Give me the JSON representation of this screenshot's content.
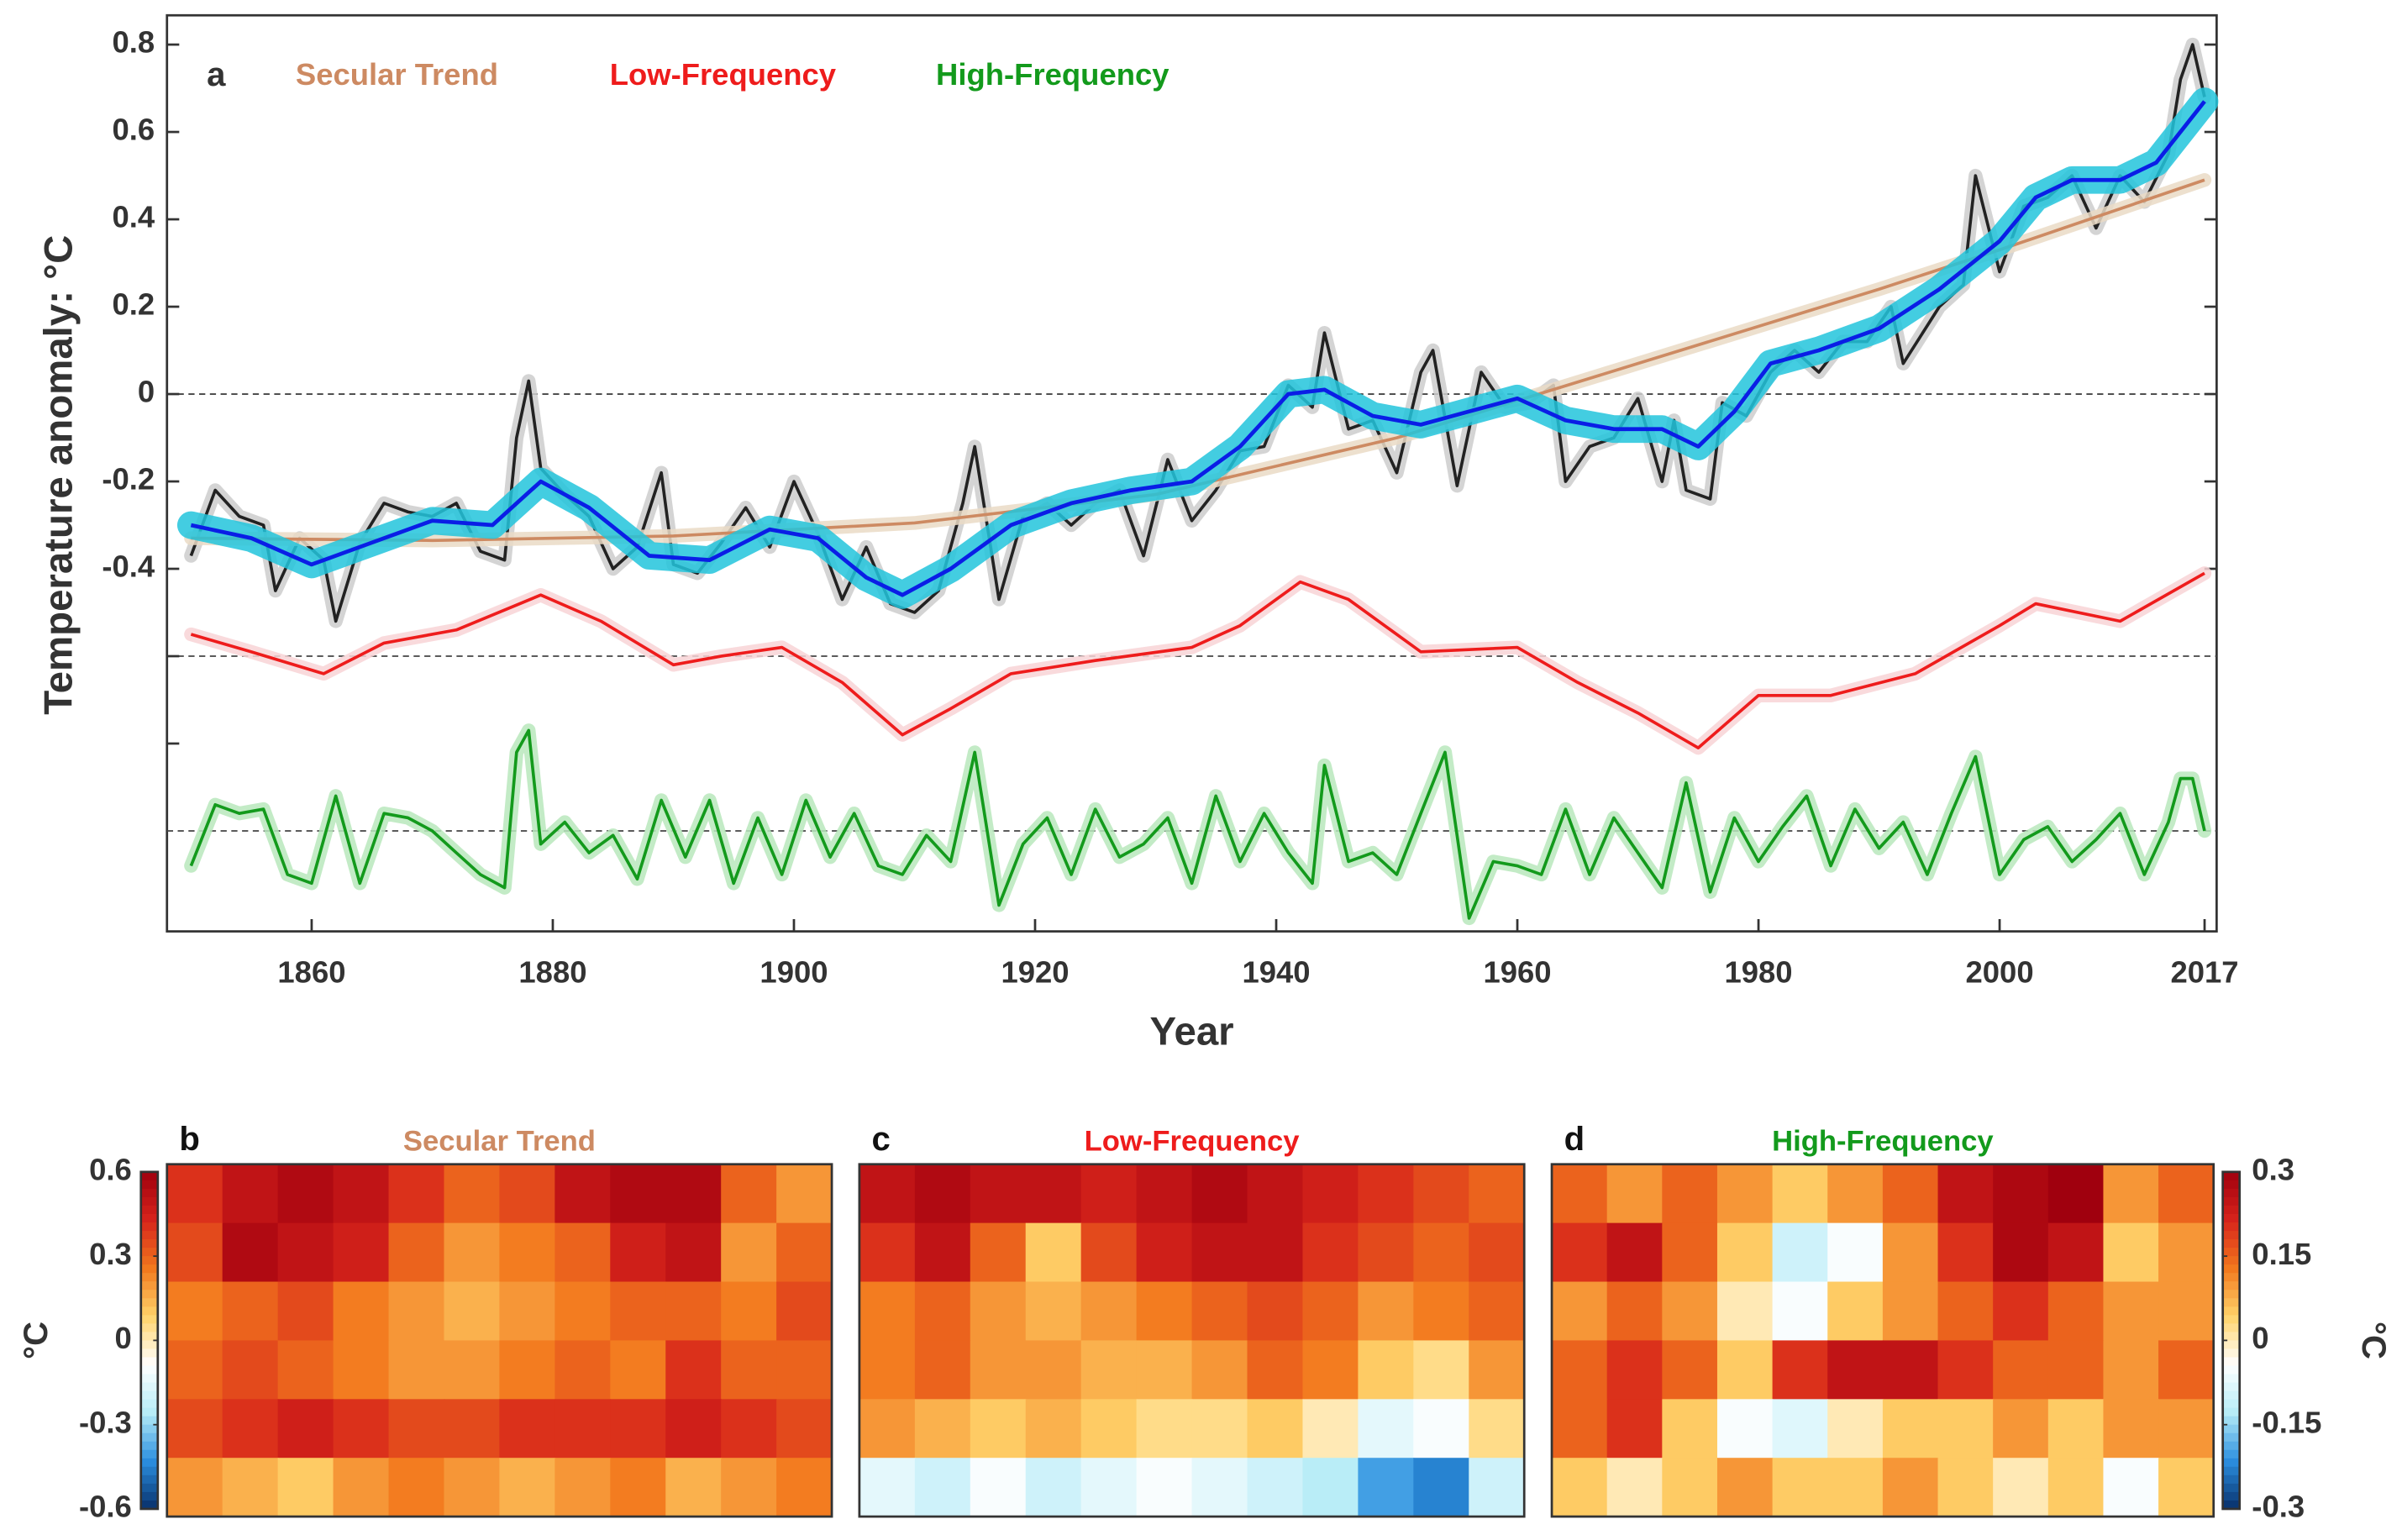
{
  "chart_data": [
    {
      "type": "line",
      "panel": "a",
      "ylabel": "Temperature anomaly: °C",
      "xlabel": "Year",
      "xlim": [
        1848,
        2018
      ],
      "xticks": [
        1860,
        1880,
        1900,
        1920,
        1940,
        1960,
        1980,
        2000,
        2017
      ],
      "ylim": [
        -1.23,
        0.867
      ],
      "yticks": [
        0.8,
        0.6,
        0.4,
        0.2,
        0,
        -0.2,
        -0.4
      ],
      "minor_yticks": [
        -0.6,
        -0.8
      ],
      "hlines": [
        0,
        -0.6,
        -1.0
      ],
      "hline_style": "dashed",
      "series": [
        {
          "name": "Secular Trend",
          "color": "#cd8a62",
          "band": "#eadbc6",
          "x": [
            1850,
            1870,
            1890,
            1910,
            1930,
            1950,
            1970,
            1990,
            2000,
            2017
          ],
          "values": [
            -0.33,
            -0.335,
            -0.325,
            -0.295,
            -0.23,
            -0.1,
            0.07,
            0.24,
            0.33,
            0.49
          ]
        },
        {
          "color": "#222222",
          "band": "#cccccc",
          "x": [
            1850,
            1852,
            1854,
            1856,
            1857,
            1859,
            1861,
            1862,
            1864,
            1866,
            1868,
            1870,
            1872,
            1874,
            1876,
            1877,
            1878,
            1879,
            1881,
            1883,
            1885,
            1887,
            1889,
            1890,
            1892,
            1894,
            1896,
            1898,
            1900,
            1902,
            1904,
            1906,
            1908,
            1910,
            1912,
            1914,
            1915,
            1917,
            1919,
            1921,
            1923,
            1925,
            1927,
            1929,
            1931,
            1933,
            1935,
            1937,
            1939,
            1941,
            1943,
            1944,
            1946,
            1948,
            1950,
            1952,
            1953,
            1955,
            1957,
            1959,
            1961,
            1963,
            1964,
            1966,
            1968,
            1970,
            1972,
            1973,
            1974,
            1976,
            1977,
            1979,
            1981,
            1983,
            1985,
            1987,
            1989,
            1991,
            1992,
            1995,
            1997,
            1998,
            2000,
            2002,
            2004,
            2006,
            2008,
            2010,
            2012,
            2014,
            2015,
            2016,
            2017
          ],
          "values": [
            -0.37,
            -0.22,
            -0.28,
            -0.3,
            -0.45,
            -0.33,
            -0.38,
            -0.52,
            -0.34,
            -0.25,
            -0.27,
            -0.28,
            -0.25,
            -0.36,
            -0.38,
            -0.1,
            0.03,
            -0.17,
            -0.23,
            -0.28,
            -0.4,
            -0.35,
            -0.18,
            -0.39,
            -0.41,
            -0.34,
            -0.26,
            -0.35,
            -0.2,
            -0.32,
            -0.47,
            -0.35,
            -0.48,
            -0.5,
            -0.45,
            -0.25,
            -0.12,
            -0.47,
            -0.28,
            -0.25,
            -0.3,
            -0.25,
            -0.22,
            -0.37,
            -0.15,
            -0.29,
            -0.22,
            -0.13,
            -0.12,
            0.02,
            -0.03,
            0.14,
            -0.08,
            -0.06,
            -0.18,
            0.05,
            0.1,
            -0.21,
            0.05,
            -0.03,
            -0.02,
            0.02,
            -0.2,
            -0.12,
            -0.1,
            -0.01,
            -0.2,
            -0.06,
            -0.22,
            -0.24,
            -0.02,
            -0.05,
            0.05,
            0.1,
            0.05,
            0.12,
            0.12,
            0.2,
            0.07,
            0.2,
            0.25,
            0.5,
            0.28,
            0.43,
            0.45,
            0.5,
            0.38,
            0.5,
            0.44,
            0.55,
            0.72,
            0.8,
            0.68
          ]
        },
        {
          "color": "#0a1ee6",
          "band": "#22c4dc",
          "x": [
            1850,
            1855,
            1860,
            1865,
            1870,
            1875,
            1879,
            1883,
            1888,
            1893,
            1898,
            1902,
            1906,
            1909,
            1913,
            1918,
            1923,
            1928,
            1933,
            1937,
            1941,
            1944,
            1948,
            1952,
            1956,
            1960,
            1964,
            1968,
            1972,
            1975,
            1978,
            1981,
            1985,
            1990,
            1995,
            2000,
            2003,
            2006,
            2010,
            2013,
            2017
          ],
          "values": [
            -0.3,
            -0.33,
            -0.39,
            -0.34,
            -0.29,
            -0.3,
            -0.2,
            -0.26,
            -0.37,
            -0.38,
            -0.31,
            -0.33,
            -0.42,
            -0.46,
            -0.4,
            -0.3,
            -0.25,
            -0.22,
            -0.2,
            -0.12,
            0.0,
            0.01,
            -0.05,
            -0.07,
            -0.04,
            -0.01,
            -0.06,
            -0.08,
            -0.08,
            -0.12,
            -0.04,
            0.07,
            0.1,
            0.15,
            0.24,
            0.35,
            0.45,
            0.49,
            0.49,
            0.53,
            0.67
          ]
        },
        {
          "name": "Low-Frequency",
          "color": "#ee1c1c",
          "band": "#f8d4d6",
          "x": [
            1850,
            1855,
            1861,
            1866,
            1872,
            1879,
            1884,
            1890,
            1894,
            1899,
            1904,
            1909,
            1913,
            1918,
            1925,
            1933,
            1937,
            1942,
            1946,
            1952,
            1960,
            1965,
            1970,
            1975,
            1980,
            1986,
            1993,
            2000,
            2003,
            2010,
            2017
          ],
          "values": [
            -0.55,
            -0.59,
            -0.64,
            -0.57,
            -0.54,
            -0.46,
            -0.52,
            -0.62,
            -0.6,
            -0.58,
            -0.66,
            -0.78,
            -0.72,
            -0.64,
            -0.61,
            -0.58,
            -0.53,
            -0.43,
            -0.47,
            -0.59,
            -0.58,
            -0.66,
            -0.73,
            -0.81,
            -0.69,
            -0.69,
            -0.64,
            -0.53,
            -0.48,
            -0.52,
            -0.41
          ]
        },
        {
          "name": "High-Frequency",
          "color": "#139a1c",
          "band": "#b9e8bc",
          "x": [
            1850,
            1852,
            1854,
            1856,
            1858,
            1860,
            1862,
            1864,
            1866,
            1868,
            1870,
            1872,
            1874,
            1876,
            1877,
            1878,
            1879,
            1881,
            1883,
            1885,
            1887,
            1889,
            1891,
            1893,
            1895,
            1897,
            1899,
            1901,
            1903,
            1905,
            1907,
            1909,
            1911,
            1913,
            1915,
            1917,
            1919,
            1921,
            1923,
            1925,
            1927,
            1929,
            1931,
            1933,
            1935,
            1937,
            1939,
            1941,
            1943,
            1944,
            1946,
            1948,
            1950,
            1952,
            1954,
            1956,
            1958,
            1960,
            1962,
            1964,
            1966,
            1968,
            1970,
            1972,
            1974,
            1976,
            1978,
            1980,
            1982,
            1984,
            1986,
            1988,
            1990,
            1992,
            1994,
            1996,
            1998,
            2000,
            2002,
            2004,
            2006,
            2008,
            2010,
            2012,
            2014,
            2015,
            2016,
            2017
          ],
          "values": [
            -1.08,
            -0.94,
            -0.96,
            -0.95,
            -1.1,
            -1.12,
            -0.92,
            -1.12,
            -0.96,
            -0.97,
            -1.0,
            -1.05,
            -1.1,
            -1.13,
            -0.82,
            -0.77,
            -1.03,
            -0.98,
            -1.05,
            -1.01,
            -1.11,
            -0.93,
            -1.06,
            -0.93,
            -1.12,
            -0.97,
            -1.1,
            -0.93,
            -1.06,
            -0.96,
            -1.08,
            -1.1,
            -1.01,
            -1.07,
            -0.82,
            -1.17,
            -1.03,
            -0.97,
            -1.1,
            -0.95,
            -1.06,
            -1.03,
            -0.97,
            -1.12,
            -0.92,
            -1.07,
            -0.96,
            -1.05,
            -1.12,
            -0.85,
            -1.07,
            -1.05,
            -1.1,
            -0.96,
            -0.82,
            -1.2,
            -1.07,
            -1.08,
            -1.1,
            -0.95,
            -1.1,
            -0.97,
            -1.05,
            -1.13,
            -0.89,
            -1.14,
            -0.97,
            -1.07,
            -0.99,
            -0.92,
            -1.08,
            -0.95,
            -1.04,
            -0.98,
            -1.1,
            -0.96,
            -0.83,
            -1.1,
            -1.02,
            -0.99,
            -1.07,
            -1.02,
            -0.96,
            -1.1,
            -0.98,
            -0.88,
            -0.88,
            -1.0
          ]
        }
      ]
    },
    {
      "type": "heatmap",
      "panel": "b",
      "title": "Secular Trend",
      "title_color": "#cd8a62",
      "zlim": [
        -0.6,
        0.6
      ],
      "colorbar": {
        "side": "left",
        "ticks": [
          0.6,
          0.3,
          0,
          -0.3,
          -0.6
        ],
        "label": "°C"
      },
      "colormap": [
        "#08306b",
        "#2b8fe0",
        "#b6ecf7",
        "#ffffff",
        "#ffd36a",
        "#f2781d",
        "#d6231b",
        "#a0000e"
      ],
      "grid": [
        [
          0.4,
          0.5,
          0.55,
          0.5,
          0.4,
          0.3,
          0.35,
          0.5,
          0.55,
          0.55,
          0.3,
          0.2
        ],
        [
          0.35,
          0.55,
          0.5,
          0.45,
          0.3,
          0.2,
          0.25,
          0.3,
          0.45,
          0.5,
          0.2,
          0.3
        ],
        [
          0.25,
          0.3,
          0.35,
          0.25,
          0.2,
          0.15,
          0.2,
          0.25,
          0.3,
          0.3,
          0.25,
          0.35
        ],
        [
          0.3,
          0.35,
          0.3,
          0.25,
          0.2,
          0.2,
          0.25,
          0.3,
          0.25,
          0.4,
          0.3,
          0.3
        ],
        [
          0.35,
          0.4,
          0.45,
          0.4,
          0.35,
          0.35,
          0.4,
          0.4,
          0.4,
          0.45,
          0.4,
          0.35
        ],
        [
          0.2,
          0.15,
          0.1,
          0.2,
          0.25,
          0.2,
          0.15,
          0.2,
          0.25,
          0.15,
          0.2,
          0.25
        ]
      ]
    },
    {
      "type": "heatmap",
      "panel": "c",
      "title": "Low-Frequency",
      "title_color": "#ee1c1c",
      "zlim": [
        -0.6,
        0.6
      ],
      "colormap": [
        "#08306b",
        "#2b8fe0",
        "#b6ecf7",
        "#ffffff",
        "#ffd36a",
        "#f2781d",
        "#d6231b",
        "#a0000e"
      ],
      "grid": [
        [
          0.5,
          0.55,
          0.5,
          0.5,
          0.45,
          0.5,
          0.55,
          0.5,
          0.45,
          0.4,
          0.35,
          0.3
        ],
        [
          0.4,
          0.5,
          0.3,
          0.1,
          0.35,
          0.45,
          0.5,
          0.5,
          0.4,
          0.35,
          0.3,
          0.35
        ],
        [
          0.25,
          0.3,
          0.2,
          0.15,
          0.2,
          0.25,
          0.3,
          0.35,
          0.3,
          0.2,
          0.25,
          0.3
        ],
        [
          0.25,
          0.3,
          0.2,
          0.2,
          0.15,
          0.15,
          0.2,
          0.3,
          0.25,
          0.1,
          0.05,
          0.2
        ],
        [
          0.2,
          0.15,
          0.1,
          0.15,
          0.1,
          0.05,
          0.05,
          0.1,
          0.0,
          -0.15,
          -0.1,
          0.05
        ],
        [
          -0.15,
          -0.2,
          -0.1,
          -0.2,
          -0.15,
          -0.1,
          -0.15,
          -0.2,
          -0.25,
          -0.4,
          -0.45,
          -0.2
        ]
      ]
    },
    {
      "type": "heatmap",
      "panel": "d",
      "title": "High-Frequency",
      "title_color": "#139a1c",
      "zlim": [
        -0.3,
        0.3
      ],
      "colorbar": {
        "side": "right",
        "ticks": [
          0.3,
          0.15,
          0,
          -0.15,
          -0.3
        ],
        "label": "°C"
      },
      "colormap": [
        "#08306b",
        "#2b8fe0",
        "#b6ecf7",
        "#ffffff",
        "#ffd36a",
        "#f2781d",
        "#d6231b",
        "#a0000e"
      ],
      "grid": [
        [
          0.15,
          0.1,
          0.15,
          0.1,
          0.05,
          0.1,
          0.15,
          0.25,
          0.28,
          0.3,
          0.1,
          0.15
        ],
        [
          0.2,
          0.25,
          0.15,
          0.05,
          -0.1,
          -0.05,
          0.1,
          0.2,
          0.28,
          0.25,
          0.05,
          0.1
        ],
        [
          0.1,
          0.15,
          0.1,
          0.0,
          -0.05,
          0.05,
          0.1,
          0.15,
          0.2,
          0.15,
          0.1,
          0.1
        ],
        [
          0.15,
          0.2,
          0.15,
          0.05,
          0.2,
          0.25,
          0.25,
          0.2,
          0.15,
          0.15,
          0.1,
          0.15
        ],
        [
          0.15,
          0.2,
          0.05,
          -0.05,
          -0.08,
          0.0,
          0.05,
          0.05,
          0.1,
          0.05,
          0.1,
          0.1
        ],
        [
          0.05,
          0.0,
          0.05,
          0.1,
          0.05,
          0.05,
          0.1,
          0.05,
          0.0,
          0.05,
          -0.05,
          0.05
        ]
      ]
    }
  ]
}
